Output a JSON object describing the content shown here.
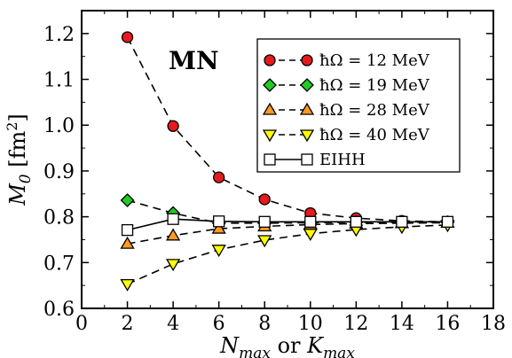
{
  "chart_data": {
    "type": "line",
    "xlabel": "N_max or K_max",
    "ylabel": "M_0 [fm^2]",
    "annotation": "MN",
    "xlim": [
      0,
      18
    ],
    "ylim": [
      0.6,
      1.25
    ],
    "xticks": [
      "0",
      "2",
      "4",
      "6",
      "8",
      "10",
      "12",
      "14",
      "16",
      "18"
    ],
    "yticks": [
      "0.6",
      "0.7",
      "0.8",
      "0.9",
      "1.0",
      "1.1",
      "1.2"
    ],
    "legend_position": "top-right",
    "series": [
      {
        "name": "ħΩ = 12 MeV",
        "x": [
          2,
          4,
          6,
          8,
          10,
          12,
          14,
          16
        ],
        "values": [
          1.192,
          0.998,
          0.886,
          0.838,
          0.808,
          0.797,
          0.791,
          0.789
        ],
        "color": "#e41a1c",
        "marker": "circle",
        "line": "dashed"
      },
      {
        "name": "ħΩ = 19 MeV",
        "x": [
          2,
          4,
          6,
          8,
          10,
          12,
          14,
          16
        ],
        "values": [
          0.836,
          0.808,
          0.786,
          0.786,
          0.787,
          0.788,
          0.788,
          0.788
        ],
        "color": "#22cc22",
        "marker": "diamond",
        "line": "dashed"
      },
      {
        "name": "ħΩ = 28 MeV",
        "x": [
          2,
          4,
          6,
          8,
          10,
          12,
          14,
          16
        ],
        "values": [
          0.741,
          0.759,
          0.774,
          0.779,
          0.783,
          0.785,
          0.786,
          0.787
        ],
        "color": "#ff9922",
        "marker": "triangle-up",
        "line": "dashed"
      },
      {
        "name": "ħΩ = 40 MeV",
        "x": [
          2,
          4,
          6,
          8,
          10,
          12,
          14,
          16
        ],
        "values": [
          0.653,
          0.697,
          0.728,
          0.749,
          0.763,
          0.772,
          0.778,
          0.782
        ],
        "color": "#ffff00",
        "marker": "triangle-down",
        "line": "dashed"
      },
      {
        "name": "EIHH",
        "x": [
          2,
          4,
          6,
          8,
          10,
          12,
          14,
          16
        ],
        "values": [
          0.771,
          0.795,
          0.79,
          0.789,
          0.789,
          0.789,
          0.789,
          0.789
        ],
        "color": "#ffffff",
        "marker": "square",
        "line": "solid"
      }
    ]
  }
}
